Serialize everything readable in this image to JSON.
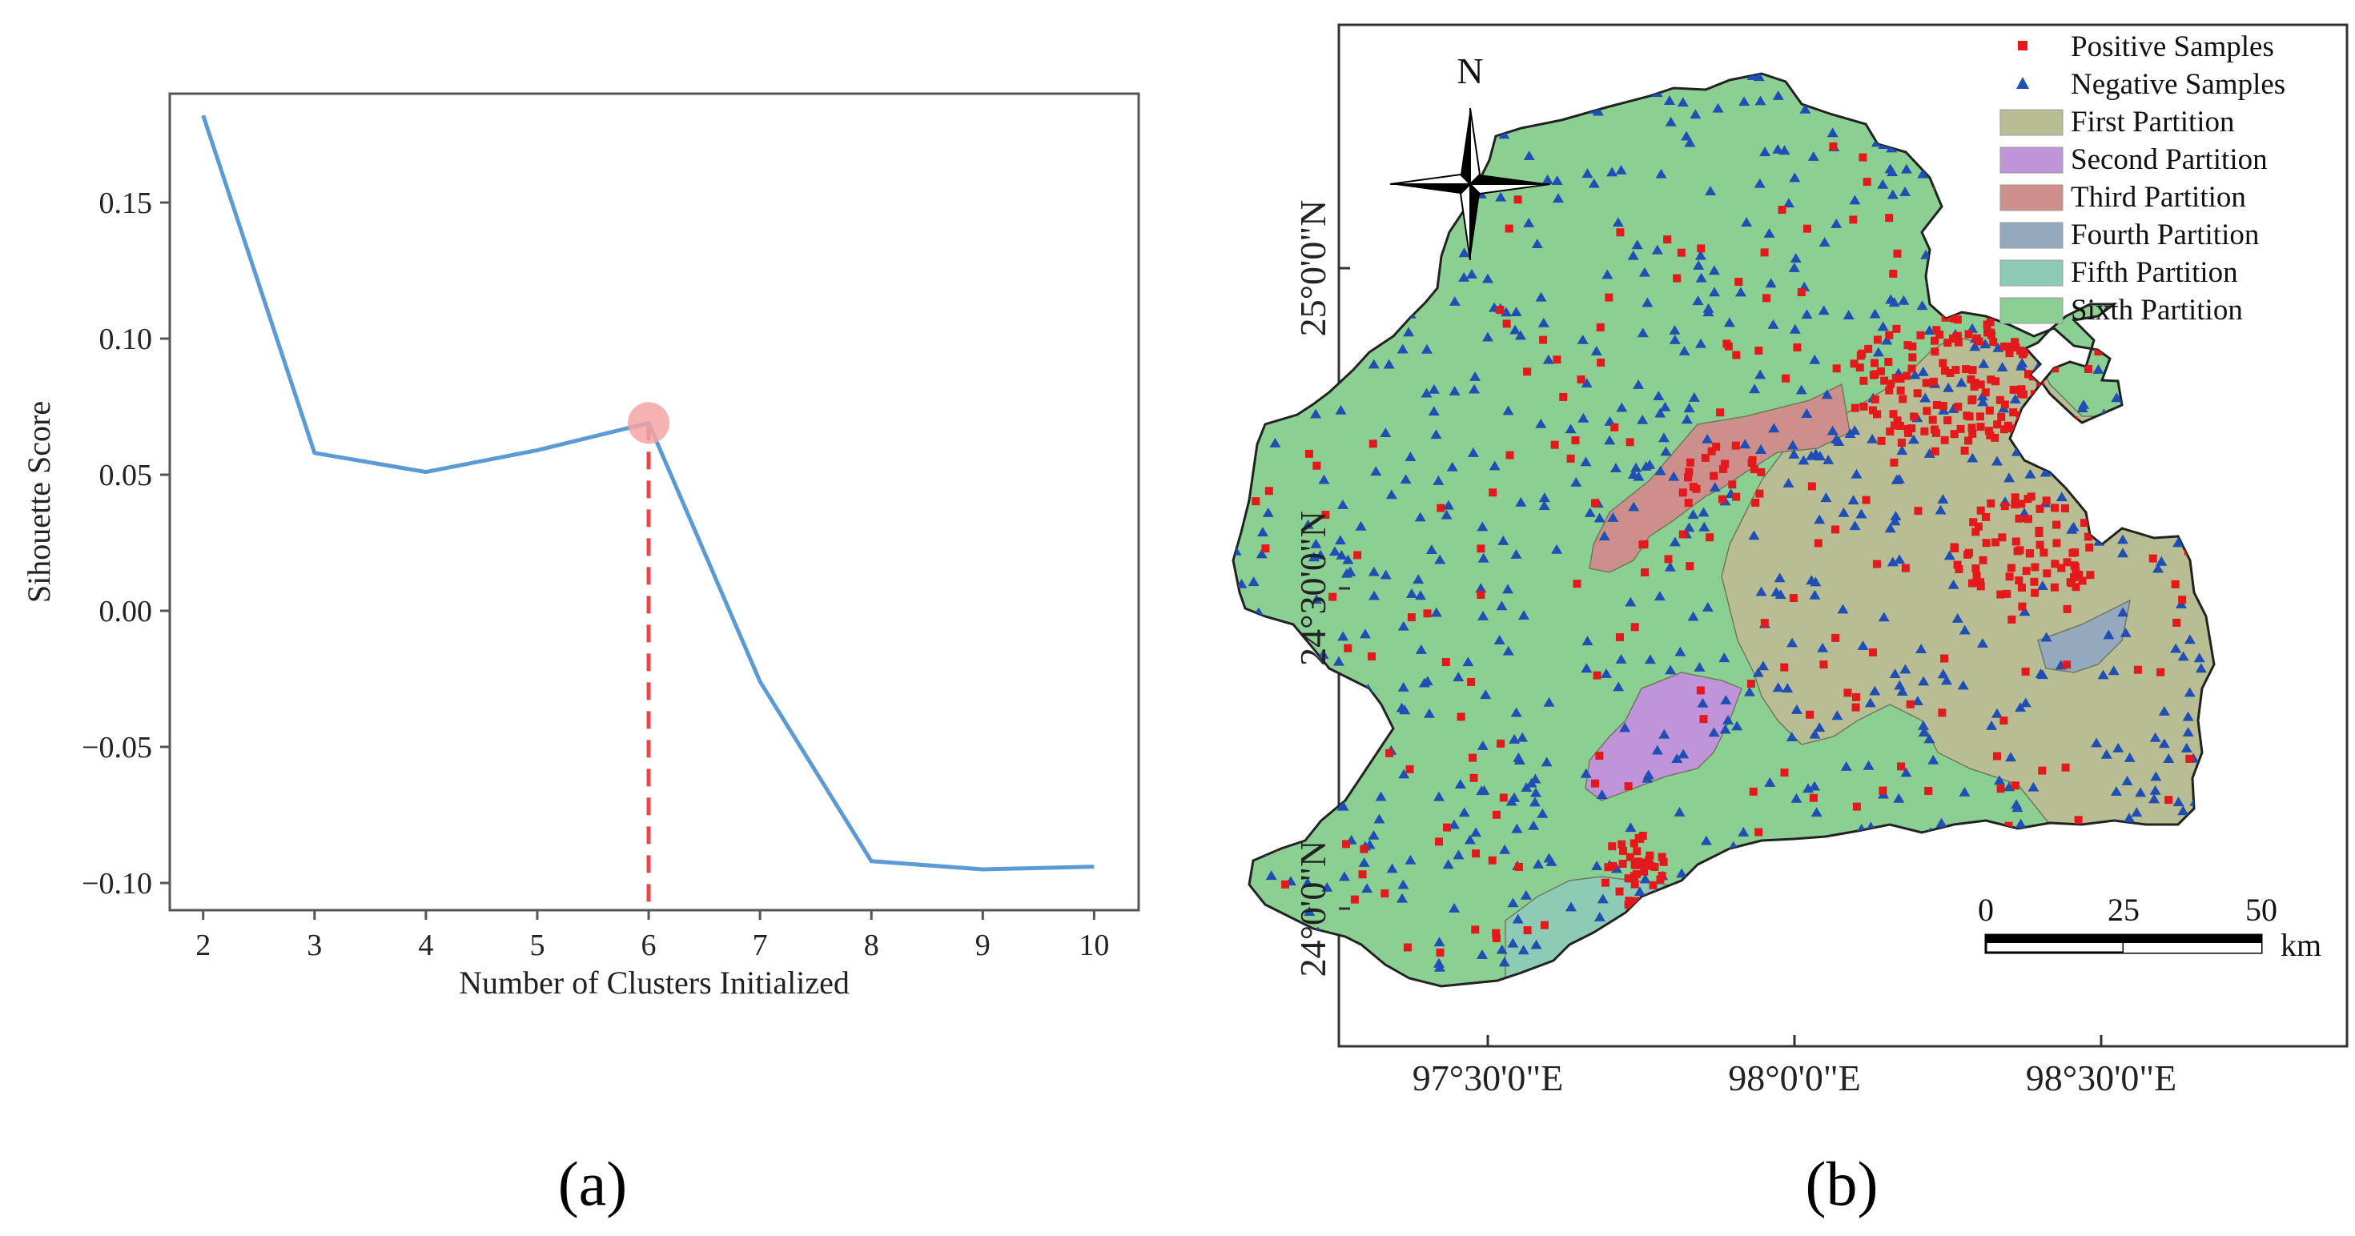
{
  "chart_data": [
    {
      "type": "line",
      "panel_label": "(a)",
      "title": "",
      "xlabel": "Number of Clusters Initialized",
      "ylabel": "Sihouette Score",
      "x": [
        2,
        3,
        4,
        5,
        6,
        7,
        8,
        9,
        10
      ],
      "series": [
        {
          "values": [
            0.182,
            0.058,
            0.051,
            0.059,
            0.069,
            -0.026,
            -0.092,
            -0.095,
            -0.094
          ],
          "color": "#5b9bd5"
        }
      ],
      "xlim": [
        1.7,
        10.4
      ],
      "ylim": [
        -0.11,
        0.19
      ],
      "xticks": [
        "2",
        "3",
        "4",
        "5",
        "6",
        "7",
        "8",
        "9",
        "10"
      ],
      "yticks": [
        {
          "value": 0.15,
          "label": "0.15"
        },
        {
          "value": 0.1,
          "label": "0.10"
        },
        {
          "value": 0.05,
          "label": "0.05"
        },
        {
          "value": 0.0,
          "label": "0.00"
        },
        {
          "value": -0.05,
          "label": "−0.05"
        },
        {
          "value": -0.1,
          "label": "−0.10"
        }
      ],
      "highlight": {
        "x": 6,
        "y": 0.069,
        "color": "#f4a3a3",
        "line_color": "#e8474a"
      },
      "grid": false,
      "legend": "none"
    },
    {
      "type": "map",
      "panel_label": "(b)",
      "north_label": "N",
      "lon_ticks": [
        {
          "value": 97.5,
          "label": "97°30'0\"E"
        },
        {
          "value": 98.0,
          "label": "98°0'0\"E"
        },
        {
          "value": 98.5,
          "label": "98°30'0\"E"
        }
      ],
      "lat_ticks": [
        {
          "value": 25.0,
          "label": "25°0'0\"N"
        },
        {
          "value": 24.5,
          "label": "24°30'0\"N"
        },
        {
          "value": 24.0,
          "label": "24°0'0\"N"
        }
      ],
      "legend_position": "top-right",
      "legend": [
        {
          "label": "Positive Samples",
          "kind": "square",
          "color": "#e3191c"
        },
        {
          "label": "Negative Samples",
          "kind": "triangle",
          "color": "#1f4fb4"
        },
        {
          "label": "First Partition",
          "kind": "patch",
          "color": "#b9bd93"
        },
        {
          "label": "Second Partition",
          "kind": "patch",
          "color": "#bf94d8"
        },
        {
          "label": "Third Partition",
          "kind": "patch",
          "color": "#cc8f8c"
        },
        {
          "label": "Fourth Partition",
          "kind": "patch",
          "color": "#94a9bd"
        },
        {
          "label": "Fifth Partition",
          "kind": "patch",
          "color": "#8ecbb5"
        },
        {
          "label": "Sixth Partition",
          "kind": "patch",
          "color": "#8ccf92"
        }
      ],
      "scale_bar": {
        "labels": [
          "0",
          "25",
          "50"
        ],
        "unit": "km"
      }
    }
  ]
}
